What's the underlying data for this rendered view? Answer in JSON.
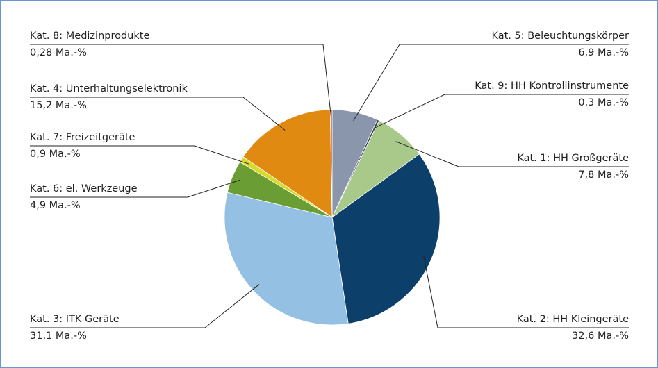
{
  "chart_data": {
    "type": "pie",
    "categories": [
      "Kat. 5: Beleuchtungskörper",
      "Kat. 9: HH Kontrollinstrumente",
      "Kat. 1: HH Großgeräte",
      "Kat. 2: HH Kleingeräte",
      "Kat. 3: ITK Geräte",
      "Kat. 6: el. Werkzeuge",
      "Kat. 7: Freizeitgeräte",
      "Kat. 4: Unterhaltungselektronik",
      "Kat. 8: Medizinprodukte"
    ],
    "values": [
      6.9,
      0.3,
      7.8,
      32.6,
      31.1,
      4.9,
      0.9,
      15.2,
      0.28
    ],
    "value_labels": [
      "6,9 Ma.-%",
      "0,3 Ma.-%",
      "7,8 Ma.-%",
      "32,6 Ma.-%",
      "31,1 Ma.-%",
      "4,9 Ma.-%",
      "0,9 Ma.-%",
      "15,2 Ma.-%",
      "0,28 Ma.-%"
    ],
    "colors": [
      "#8a96ab",
      "#34404f",
      "#a9c98a",
      "#0d3f6b",
      "#93c0e3",
      "#6a9e35",
      "#d9d92a",
      "#e08a12",
      "#c0392b"
    ]
  }
}
